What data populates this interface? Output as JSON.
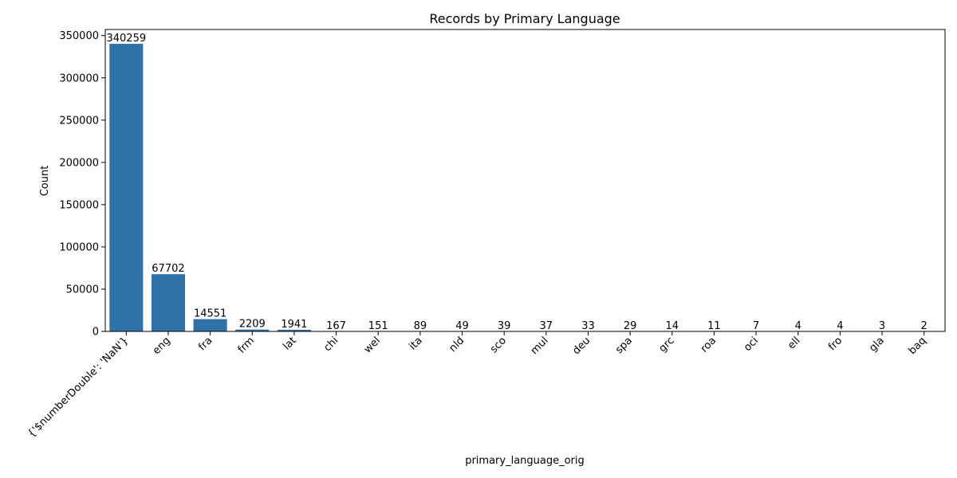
{
  "chart_data": {
    "type": "bar",
    "title": "Records by Primary Language",
    "xlabel": "primary_language_orig",
    "ylabel": "Count",
    "categories": [
      "{'$numberDouble': 'NaN'}",
      "eng",
      "fra",
      "frm",
      "lat",
      "chi",
      "wel",
      "ita",
      "nld",
      "sco",
      "mul",
      "deu",
      "spa",
      "grc",
      "roa",
      "oci",
      "ell",
      "fro",
      "gla",
      "baq"
    ],
    "values": [
      340259,
      67702,
      14551,
      2209,
      1941,
      167,
      151,
      89,
      49,
      39,
      37,
      33,
      29,
      14,
      11,
      7,
      4,
      4,
      3,
      2
    ],
    "data_labels": [
      "340259",
      "67702",
      "14551",
      "2209",
      "1941",
      "167",
      "151",
      "89",
      "49",
      "39",
      "37",
      "33",
      "29",
      "14",
      "11",
      "7",
      "4",
      "4",
      "3",
      "2"
    ],
    "ylim": [
      0,
      357272
    ],
    "yticks": [
      0,
      50000,
      100000,
      150000,
      200000,
      250000,
      300000,
      350000
    ],
    "ytick_labels": [
      "0",
      "50000",
      "100000",
      "150000",
      "200000",
      "250000",
      "300000",
      "350000"
    ],
    "bar_color": "#2f72a8",
    "grid": false,
    "legend": "none"
  }
}
